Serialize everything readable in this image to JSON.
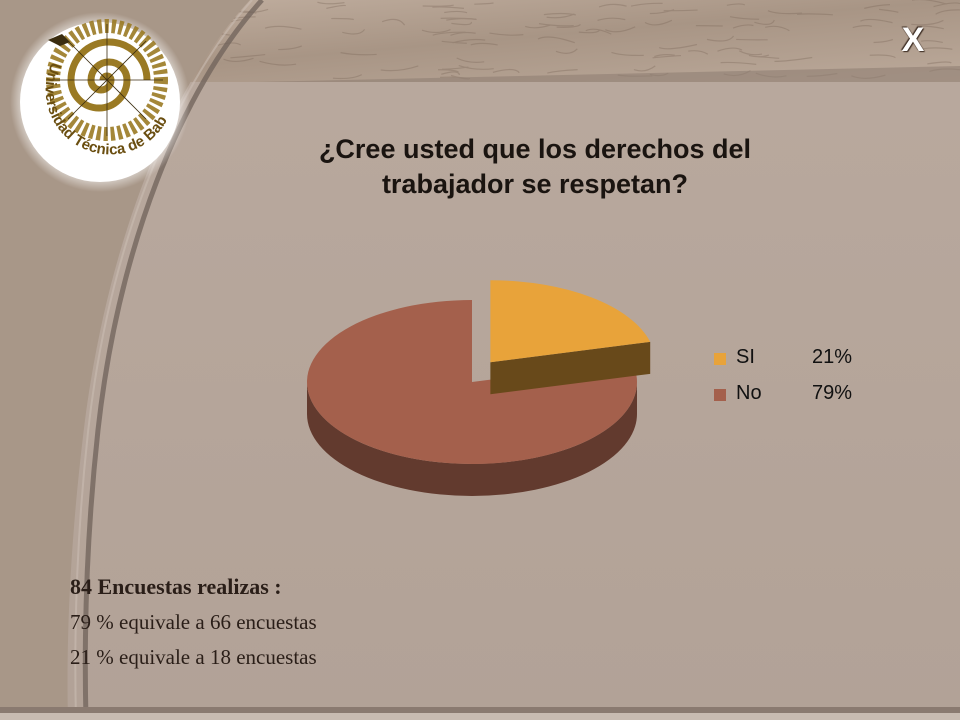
{
  "logo": {
    "text": "Universidad Técnica de Babahoyo"
  },
  "close_label": "X",
  "chart_data": {
    "type": "pie",
    "title": "¿Cree usted que los derechos del trabajador se respetan?",
    "categories": [
      "SI",
      "No"
    ],
    "values": [
      21,
      79
    ],
    "labels": [
      "21%",
      "79%"
    ],
    "colors": [
      "#e8a33a",
      "#a4604c"
    ],
    "legend_position": "right",
    "exploded": "SI"
  },
  "summary": {
    "heading": "84 Encuestas realizas :",
    "lines": [
      "79 % equivale a 66 encuestas",
      "21 % equivale a 18 encuestas"
    ]
  },
  "colors": {
    "background": "#b6a69b",
    "texture": "#b7a597",
    "curve": "#7d6f66",
    "logo_gold": "#9a7a24"
  }
}
